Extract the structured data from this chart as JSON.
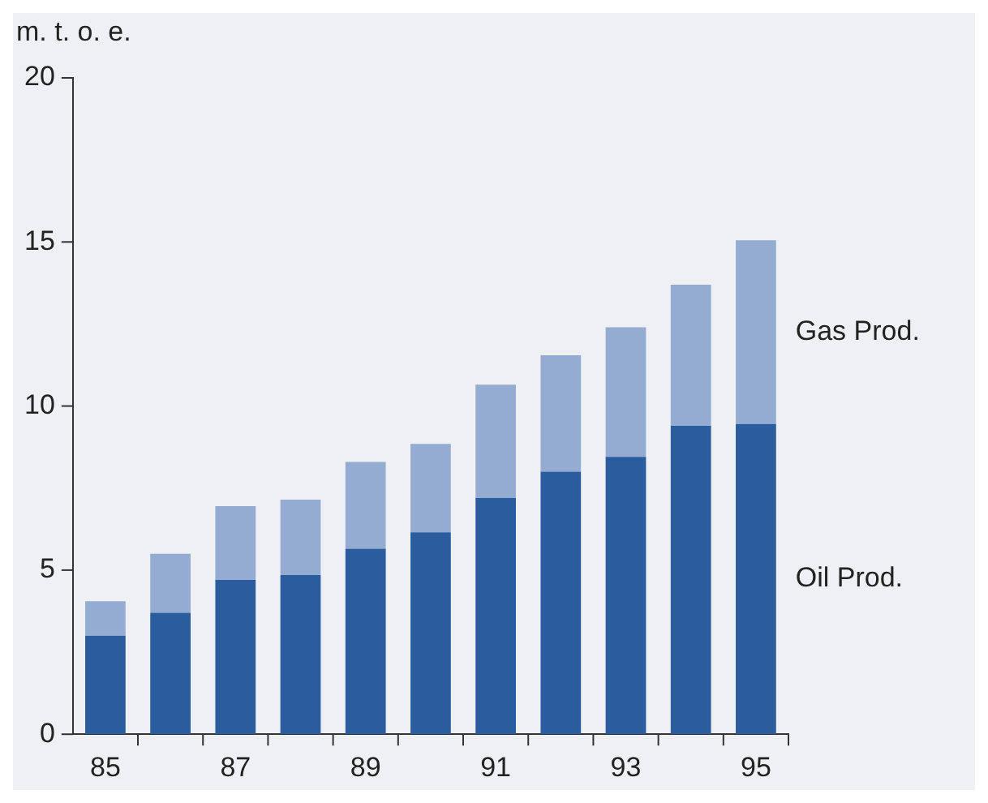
{
  "chart_data": {
    "type": "bar",
    "ylabel": "m. t. o. e.",
    "categories": [
      "85",
      null,
      "87",
      null,
      "89",
      null,
      "91",
      null,
      "93",
      null,
      "95"
    ],
    "stacked": true,
    "ylim": [
      0,
      20
    ],
    "yticks": [
      0,
      5,
      10,
      15,
      20
    ],
    "grid": false,
    "legend": false,
    "series": [
      {
        "name": "Oil Prod.",
        "color": "#2a5c9e",
        "values": [
          3.0,
          3.7,
          4.7,
          4.85,
          5.65,
          6.15,
          7.2,
          8.0,
          8.45,
          9.4,
          9.45
        ]
      },
      {
        "name": "Gas Prod.",
        "color": "#94acd2",
        "values": [
          1.05,
          1.8,
          2.25,
          2.3,
          2.65,
          2.7,
          3.45,
          3.55,
          3.95,
          4.3,
          5.6
        ]
      }
    ]
  }
}
